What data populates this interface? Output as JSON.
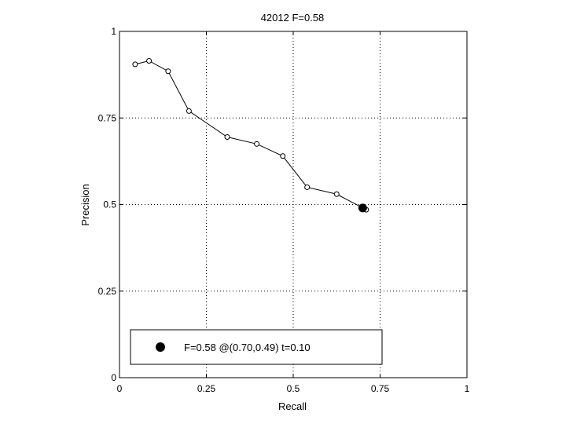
{
  "chart_data": {
    "type": "line",
    "title": "42012 F=0.58",
    "xlabel": "Recall",
    "ylabel": "Precision",
    "xlim": [
      0,
      1
    ],
    "ylim": [
      0,
      1
    ],
    "xticks": [
      0,
      0.25,
      0.5,
      0.75,
      1
    ],
    "yticks": [
      0,
      0.25,
      0.5,
      0.75,
      1
    ],
    "xtick_labels": [
      "0",
      "0.25",
      "0.5",
      "0.75",
      "1"
    ],
    "ytick_labels": [
      "0",
      "0.25",
      "0.5",
      "0.75",
      "1"
    ],
    "grid": true,
    "series": [
      {
        "x": [
          0.045,
          0.085,
          0.14,
          0.2,
          0.31,
          0.395,
          0.47,
          0.54,
          0.625,
          0.71
        ],
        "y": [
          0.905,
          0.915,
          0.885,
          0.77,
          0.695,
          0.675,
          0.64,
          0.55,
          0.53,
          0.485
        ],
        "color": "#000000",
        "marker": "open-circle"
      }
    ],
    "highlight_point": {
      "x": 0.7,
      "y": 0.49,
      "marker": "filled-circle",
      "color": "#000000"
    },
    "legend": {
      "placement": "bottom-left",
      "entries": [
        {
          "label": "F=0.58 @(0.70,0.49) t=0.10",
          "marker": "filled-circle"
        }
      ]
    }
  }
}
